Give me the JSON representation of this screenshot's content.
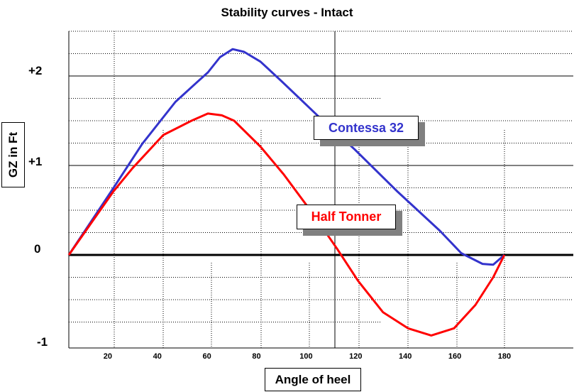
{
  "chart_data": {
    "type": "line",
    "title": "Stability curves - Intact",
    "xlabel": "Angle of heel",
    "ylabel": "GZ in Ft",
    "xlim": [
      4.3,
      207.8
    ],
    "ylim": [
      -1.04,
      2.5
    ],
    "x_ticks": [
      20,
      40,
      60,
      80,
      100,
      120,
      140,
      160,
      180
    ],
    "y_ticks": [
      {
        "value": 2,
        "label": "+2"
      },
      {
        "value": 1,
        "label": "+1"
      },
      {
        "value": 0,
        "label": "0"
      },
      {
        "value": -1,
        "label": "-1"
      }
    ],
    "grid": true,
    "series": [
      {
        "name": "Contessa 32",
        "color": "#3333cc",
        "points": [
          [
            4.3,
            0
          ],
          [
            22.6,
            0.76
          ],
          [
            33.9,
            1.24
          ],
          [
            47.3,
            1.71
          ],
          [
            56,
            1.93
          ],
          [
            60.4,
            2.04
          ],
          [
            65.3,
            2.21
          ],
          [
            70.4,
            2.3
          ],
          [
            75,
            2.27
          ],
          [
            81.6,
            2.16
          ],
          [
            90.2,
            1.94
          ],
          [
            105.3,
            1.54
          ],
          [
            119.6,
            1.18
          ],
          [
            136.8,
            0.71
          ],
          [
            154,
            0.27
          ],
          [
            162.6,
            0.02
          ],
          [
            171.2,
            -0.1
          ],
          [
            175.5,
            -0.11
          ],
          [
            180,
            0
          ]
        ]
      },
      {
        "name": "Half Tonner",
        "color": "#ff0000",
        "points": [
          [
            4.3,
            0
          ],
          [
            22.3,
            0.71
          ],
          [
            30,
            0.97
          ],
          [
            42.4,
            1.34
          ],
          [
            53.8,
            1.5
          ],
          [
            60.4,
            1.58
          ],
          [
            66,
            1.56
          ],
          [
            71,
            1.5
          ],
          [
            81.6,
            1.21
          ],
          [
            91,
            0.9
          ],
          [
            102.5,
            0.47
          ],
          [
            112.5,
            0.07
          ],
          [
            121,
            -0.29
          ],
          [
            131,
            -0.64
          ],
          [
            141.1,
            -0.82
          ],
          [
            150.5,
            -0.9
          ],
          [
            159.7,
            -0.82
          ],
          [
            168.3,
            -0.56
          ],
          [
            175.5,
            -0.25
          ],
          [
            180,
            0
          ]
        ]
      }
    ]
  }
}
